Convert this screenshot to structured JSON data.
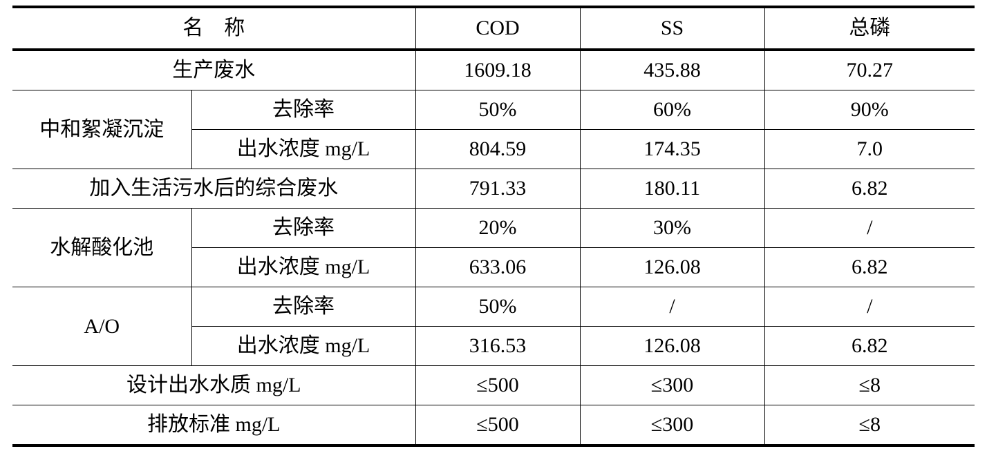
{
  "header": {
    "name": "名　称",
    "cod": "COD",
    "ss": "SS",
    "tp": "总磷"
  },
  "rows": {
    "raw": {
      "label": "生产废水",
      "cod": "1609.18",
      "ss": "435.88",
      "tp": "70.27"
    },
    "neutral": {
      "label": "中和絮凝沉淀",
      "removal": {
        "label": "去除率",
        "cod": "50%",
        "ss": "60%",
        "tp": "90%"
      },
      "effluent": {
        "label": "出水浓度 mg/L",
        "cod": "804.59",
        "ss": "174.35",
        "tp": "7.0"
      }
    },
    "combined": {
      "label": "加入生活污水后的综合废水",
      "cod": "791.33",
      "ss": "180.11",
      "tp": "6.82"
    },
    "hydrolysis": {
      "label": "水解酸化池",
      "removal": {
        "label": "去除率",
        "cod": "20%",
        "ss": "30%",
        "tp": "/"
      },
      "effluent": {
        "label": "出水浓度 mg/L",
        "cod": "633.06",
        "ss": "126.08",
        "tp": "6.82"
      }
    },
    "ao": {
      "label": "A/O",
      "removal": {
        "label": "去除率",
        "cod": "50%",
        "ss": "/",
        "tp": "/"
      },
      "effluent": {
        "label": "出水浓度 mg/L",
        "cod": "316.53",
        "ss": "126.08",
        "tp": "6.82"
      }
    },
    "design": {
      "label": "设计出水水质 mg/L",
      "cod": "≤500",
      "ss": "≤300",
      "tp": "≤8"
    },
    "standard": {
      "label": "排放标准 mg/L",
      "cod": "≤500",
      "ss": "≤300",
      "tp": "≤8"
    }
  }
}
